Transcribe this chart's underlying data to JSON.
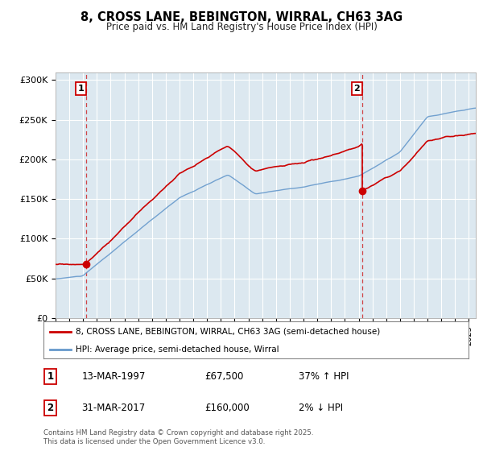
{
  "title_line1": "8, CROSS LANE, BEBINGTON, WIRRAL, CH63 3AG",
  "title_line2": "Price paid vs. HM Land Registry's House Price Index (HPI)",
  "legend_property": "8, CROSS LANE, BEBINGTON, WIRRAL, CH63 3AG (semi-detached house)",
  "legend_hpi": "HPI: Average price, semi-detached house, Wirral",
  "annotation1_date": "13-MAR-1997",
  "annotation1_price": "£67,500",
  "annotation1_hpi": "37% ↑ HPI",
  "annotation2_date": "31-MAR-2017",
  "annotation2_price": "£160,000",
  "annotation2_hpi": "2% ↓ HPI",
  "footer": "Contains HM Land Registry data © Crown copyright and database right 2025.\nThis data is licensed under the Open Government Licence v3.0.",
  "property_color": "#cc0000",
  "hpi_color": "#6699cc",
  "plot_bg_color": "#dce8f0",
  "ylim": [
    0,
    310000
  ],
  "yticks": [
    0,
    50000,
    100000,
    150000,
    200000,
    250000,
    300000
  ],
  "ytick_labels": [
    "£0",
    "£50K",
    "£100K",
    "£150K",
    "£200K",
    "£250K",
    "£300K"
  ],
  "sale1_year": 1997.2,
  "sale1_price": 67500,
  "sale2_year": 2017.25,
  "sale2_price": 160000,
  "xmin": 1995,
  "xmax": 2025.5
}
